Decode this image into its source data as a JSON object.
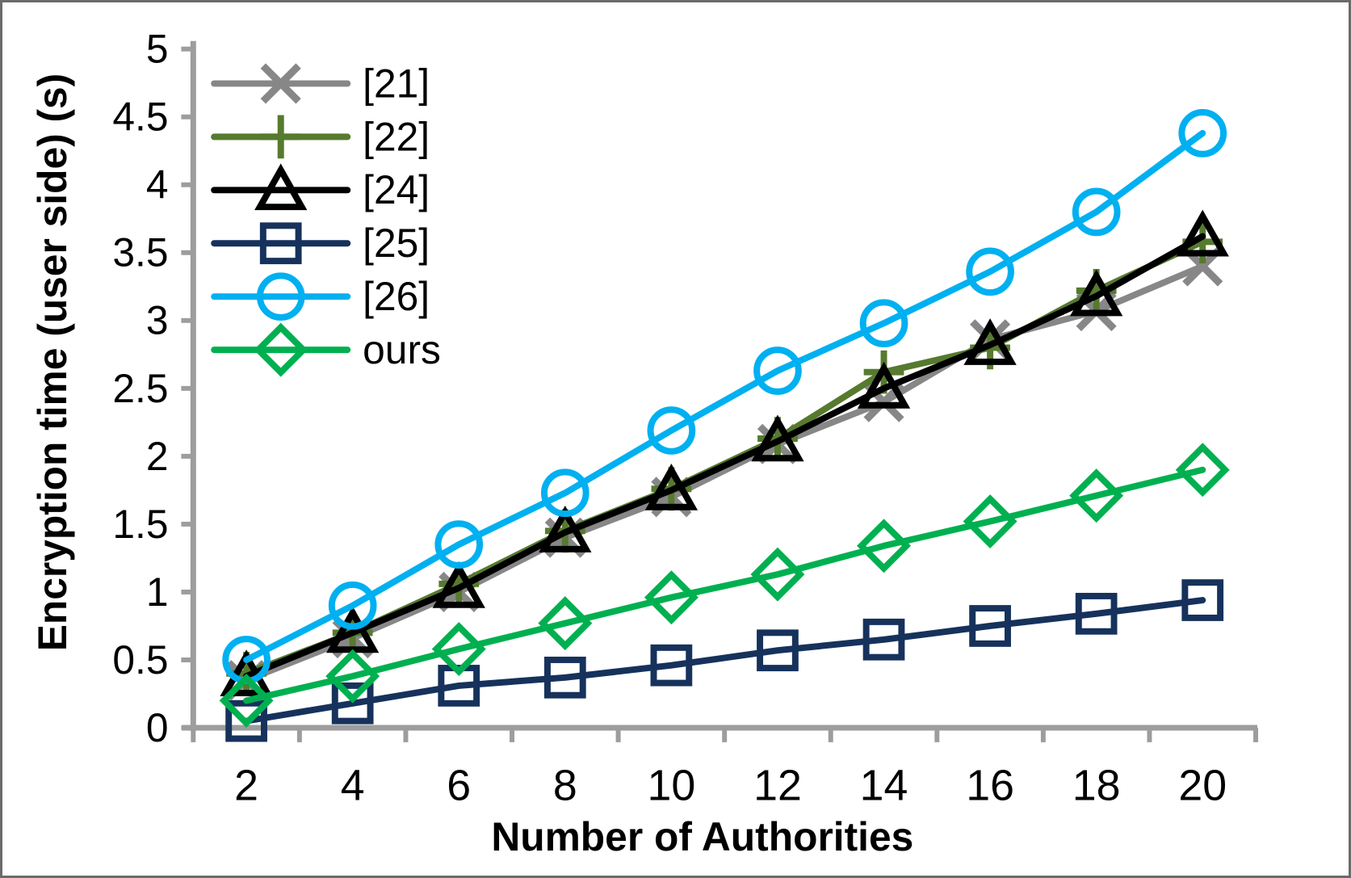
{
  "figure": {
    "background": "#FFFFFF",
    "border_color": "#6B6B6B"
  },
  "chart_data": {
    "type": "line",
    "xlabel": "Number of Authorities",
    "ylabel": "Encryption time (user side) (s)",
    "x": [
      2,
      4,
      6,
      8,
      10,
      12,
      14,
      16,
      18,
      20
    ],
    "xtick_labels": [
      "2",
      "4",
      "6",
      "8",
      "10",
      "12",
      "14",
      "16",
      "18",
      "20"
    ],
    "ylim": [
      0,
      5
    ],
    "ytick_step": 0.5,
    "ytick_labels": [
      "0",
      "0.5",
      "1",
      "1.5",
      "2",
      "2.5",
      "3",
      "3.5",
      "4",
      "4.5",
      "5"
    ],
    "grid": false,
    "legend_position": "upper-left-inside",
    "axis_color": "#9D9D9D",
    "text_color": "#000000",
    "series": [
      {
        "name": "[21]",
        "id": "21",
        "marker": "x",
        "color": "#878787",
        "values": [
          0.35,
          0.66,
          1.0,
          1.4,
          1.7,
          2.09,
          2.4,
          2.86,
          3.07,
          3.4
        ]
      },
      {
        "name": "[22]",
        "id": "22",
        "marker": "plus",
        "color": "#567A2E",
        "values": [
          0.4,
          0.7,
          1.06,
          1.45,
          1.76,
          2.13,
          2.62,
          2.8,
          3.22,
          3.58
        ]
      },
      {
        "name": "[24]",
        "id": "24",
        "marker": "triangle",
        "color": "#000000",
        "values": [
          0.38,
          0.7,
          1.03,
          1.44,
          1.75,
          2.11,
          2.5,
          2.82,
          3.18,
          3.62
        ]
      },
      {
        "name": "[25]",
        "id": "25",
        "marker": "square",
        "color": "#16325C",
        "values": [
          0.05,
          0.18,
          0.31,
          0.37,
          0.46,
          0.57,
          0.65,
          0.75,
          0.84,
          0.94
        ]
      },
      {
        "name": "[26]",
        "id": "26",
        "marker": "circle",
        "color": "#00B0F0",
        "values": [
          0.5,
          0.9,
          1.35,
          1.73,
          2.19,
          2.63,
          2.98,
          3.36,
          3.8,
          4.38
        ]
      },
      {
        "name": "ours",
        "id": "ours",
        "marker": "diamond",
        "color": "#00B050",
        "values": [
          0.2,
          0.38,
          0.58,
          0.77,
          0.96,
          1.13,
          1.34,
          1.52,
          1.71,
          1.9
        ]
      }
    ]
  }
}
